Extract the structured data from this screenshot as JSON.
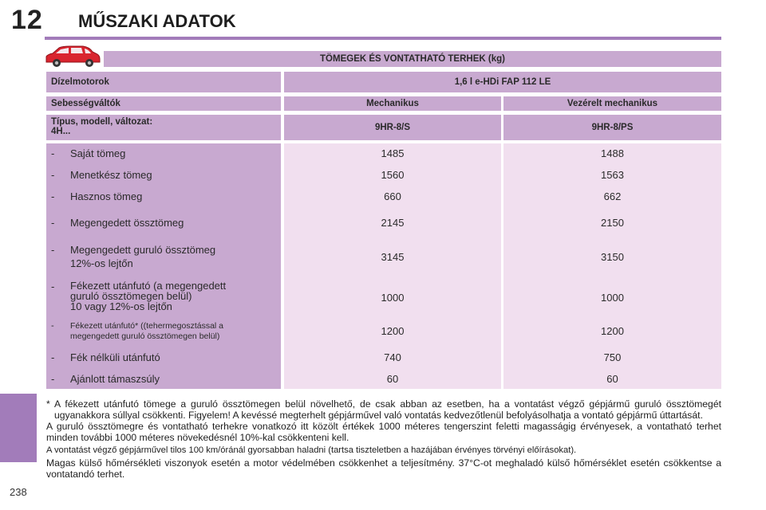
{
  "header": {
    "chapter_number": "12",
    "title": "MŰSZAKI ADATOK"
  },
  "page_number": "238",
  "table": {
    "title": "TÖMEGEK ÉS VONTATHATÓ TERHEK (kg)",
    "engine_label": "Dízelmotorok",
    "engine_value": "1,6 l e-HDi FAP 112 LE",
    "gearbox_label": "Sebességváltók",
    "gearbox_values": [
      "Mechanikus",
      "Vezérelt mechanikus"
    ],
    "type_label_line1": "Típus, modell, változat:",
    "type_label_line2": "4H...",
    "type_values": [
      "9HR-8/S",
      "9HR-8/PS"
    ],
    "rows": [
      {
        "dash": "-",
        "label": "Saját tömeg",
        "values": [
          "1485",
          "1488"
        ]
      },
      {
        "dash": "-",
        "label": "Menetkész tömeg",
        "values": [
          "1560",
          "1563"
        ]
      },
      {
        "dash": "-",
        "label": "Hasznos tömeg",
        "values": [
          "660",
          "662"
        ]
      },
      {
        "dash": "-",
        "label": "Megengedett össztömeg",
        "values": [
          "2145",
          "2150"
        ]
      },
      {
        "dash": "-",
        "label": "Megengedett guruló össztömeg",
        "label2": "12%-os lejtőn",
        "values": [
          "3145",
          "3150"
        ]
      },
      {
        "dash": "-",
        "label": "Fékezett utánfutó (a megengedett",
        "label2": "guruló össztömegen belül)",
        "label3": "10 vagy 12%-os lejtőn",
        "values": [
          "1000",
          "1000"
        ]
      },
      {
        "dash": "-",
        "label": "Fékezett utánfutó* ((tehermegosztással a",
        "label2": "megengedett guruló össztömegen belül)",
        "values": [
          "1200",
          "1200"
        ]
      },
      {
        "dash": "-",
        "label": "Fék nélküli utánfutó",
        "values": [
          "740",
          "750"
        ]
      },
      {
        "dash": "-",
        "label": "Ajánlott támaszsúly",
        "values": [
          "60",
          "60"
        ]
      }
    ]
  },
  "notes": {
    "star": "*",
    "note1": "A fékezett utánfutó tömege a guruló össztömegen belül növelhető, de csak abban az esetben, ha a vontatást végző gépjármű guruló össztömegét ugyanakkora súllyal csökkenti. Figyelem! A kevéssé megterhelt gépjárművel való vontatás kedvezőtlenül befolyásolhatja a vontató gépjármű úttartását.",
    "note2": "A guruló össztömegre és vontatható terhekre vonatkozó itt közölt értékek 1000 méteres tengerszint feletti magasságig érvényesek, a vontatható terhet minden további 1000 méteres növekedésnél 10%-kal csökkenteni kell.",
    "note3": "A vontatást végző gépjárművel tilos 100 km/óránál gyorsabban haladni (tartsa tiszteletben a hazájában érvényes törvényi előírásokat).",
    "note4": "Magas külső hőmérsékleti viszonyok esetén a motor védelmében csökkenhet a teljesítmény. 37°C-ot meghaladó külső hőmérséklet esetén csökkentse a vontatandó terhet."
  },
  "colors": {
    "accent": "#a27cba",
    "header_cell": "#c8a9d0",
    "body_cell": "#f1dfef",
    "car": "#d9252f"
  },
  "icons": {
    "car": "car-icon"
  }
}
